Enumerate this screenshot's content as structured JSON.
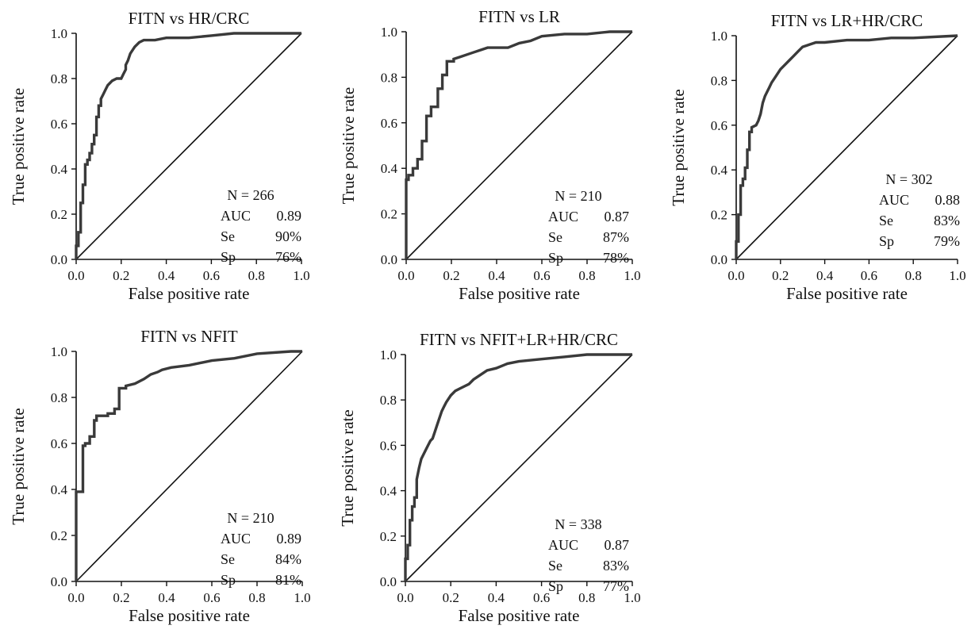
{
  "chart_data": [
    {
      "type": "line",
      "title": "FITN vs HR/CRC",
      "xlabel": "False positive rate",
      "ylabel": "True positive rate",
      "xlim": [
        0,
        1
      ],
      "ylim": [
        0,
        1
      ],
      "x_ticks": [
        "0.0",
        "0.2",
        "0.4",
        "0.6",
        "0.8",
        "1.0"
      ],
      "y_ticks": [
        "0.0",
        "0.2",
        "0.4",
        "0.6",
        "0.8",
        "1.0"
      ],
      "stats": {
        "n": "N = 266",
        "rows": [
          [
            "AUC",
            "0.89"
          ],
          [
            "Se",
            "90%"
          ],
          [
            "Sp",
            "76%"
          ]
        ]
      },
      "roc": {
        "x": [
          0,
          0,
          0.01,
          0.01,
          0.02,
          0.02,
          0.03,
          0.03,
          0.04,
          0.04,
          0.05,
          0.05,
          0.06,
          0.06,
          0.07,
          0.07,
          0.08,
          0.08,
          0.09,
          0.09,
          0.1,
          0.1,
          0.11,
          0.11,
          0.12,
          0.13,
          0.14,
          0.16,
          0.18,
          0.2,
          0.21,
          0.22,
          0.22,
          0.23,
          0.24,
          0.26,
          0.28,
          0.3,
          0.35,
          0.4,
          0.5,
          0.6,
          0.7,
          1.0
        ],
        "y": [
          0,
          0.06,
          0.06,
          0.12,
          0.12,
          0.25,
          0.25,
          0.33,
          0.33,
          0.42,
          0.42,
          0.44,
          0.44,
          0.47,
          0.47,
          0.51,
          0.51,
          0.55,
          0.55,
          0.63,
          0.63,
          0.68,
          0.68,
          0.71,
          0.73,
          0.75,
          0.77,
          0.79,
          0.8,
          0.8,
          0.82,
          0.84,
          0.86,
          0.88,
          0.91,
          0.94,
          0.96,
          0.97,
          0.97,
          0.98,
          0.98,
          0.99,
          1.0,
          1.0
        ]
      },
      "diagonal": {
        "x": [
          0,
          1
        ],
        "y": [
          0,
          1
        ]
      }
    },
    {
      "type": "line",
      "title": "FITN vs LR",
      "xlabel": "False positive rate",
      "ylabel": "True positive rate",
      "xlim": [
        0,
        1
      ],
      "ylim": [
        0,
        1
      ],
      "x_ticks": [
        "0.0",
        "0.2",
        "0.4",
        "0.6",
        "0.8",
        "1.0"
      ],
      "y_ticks": [
        "0.0",
        "0.2",
        "0.4",
        "0.6",
        "0.8",
        "1.0"
      ],
      "stats": {
        "n": "N = 210",
        "rows": [
          [
            "AUC",
            "0.87"
          ],
          [
            "Se",
            "87%"
          ],
          [
            "Sp",
            "78%"
          ]
        ]
      },
      "roc": {
        "x": [
          0,
          0,
          0.01,
          0.01,
          0.03,
          0.03,
          0.05,
          0.05,
          0.07,
          0.07,
          0.09,
          0.09,
          0.11,
          0.11,
          0.14,
          0.14,
          0.16,
          0.16,
          0.18,
          0.18,
          0.21,
          0.21,
          0.24,
          0.27,
          0.3,
          0.33,
          0.36,
          0.4,
          0.45,
          0.5,
          0.55,
          0.6,
          0.7,
          0.8,
          0.9,
          1.0
        ],
        "y": [
          0,
          0.35,
          0.35,
          0.37,
          0.37,
          0.4,
          0.4,
          0.44,
          0.44,
          0.52,
          0.52,
          0.63,
          0.63,
          0.67,
          0.67,
          0.75,
          0.75,
          0.81,
          0.81,
          0.87,
          0.87,
          0.88,
          0.89,
          0.9,
          0.91,
          0.92,
          0.93,
          0.93,
          0.93,
          0.95,
          0.96,
          0.98,
          0.99,
          0.99,
          1.0,
          1.0
        ]
      },
      "diagonal": {
        "x": [
          0,
          1
        ],
        "y": [
          0,
          1
        ]
      }
    },
    {
      "type": "line",
      "title": "FITN vs LR+HR/CRC",
      "xlabel": "False positive rate",
      "ylabel": "True positive rate",
      "xlim": [
        0,
        1
      ],
      "ylim": [
        0,
        1
      ],
      "x_ticks": [
        "0.0",
        "0.2",
        "0.4",
        "0.6",
        "0.8",
        "1.0"
      ],
      "y_ticks": [
        "0.0",
        "0.2",
        "0.4",
        "0.6",
        "0.8",
        "1.0"
      ],
      "stats": {
        "n": "N = 302",
        "rows": [
          [
            "AUC",
            "0.88"
          ],
          [
            "Se",
            "83%"
          ],
          [
            "Sp",
            "79%"
          ]
        ]
      },
      "roc": {
        "x": [
          0,
          0,
          0.01,
          0.01,
          0.02,
          0.02,
          0.03,
          0.03,
          0.04,
          0.04,
          0.05,
          0.05,
          0.06,
          0.06,
          0.07,
          0.07,
          0.09,
          0.1,
          0.11,
          0.12,
          0.13,
          0.14,
          0.15,
          0.16,
          0.18,
          0.2,
          0.22,
          0.24,
          0.26,
          0.28,
          0.3,
          0.33,
          0.36,
          0.4,
          0.5,
          0.6,
          0.7,
          0.8,
          1.0
        ],
        "y": [
          0,
          0.08,
          0.08,
          0.2,
          0.2,
          0.33,
          0.33,
          0.36,
          0.36,
          0.41,
          0.41,
          0.49,
          0.49,
          0.57,
          0.57,
          0.59,
          0.6,
          0.62,
          0.65,
          0.7,
          0.73,
          0.75,
          0.77,
          0.79,
          0.82,
          0.85,
          0.87,
          0.89,
          0.91,
          0.93,
          0.95,
          0.96,
          0.97,
          0.97,
          0.98,
          0.98,
          0.99,
          0.99,
          1.0
        ]
      },
      "diagonal": {
        "x": [
          0,
          1
        ],
        "y": [
          0,
          1
        ]
      }
    },
    {
      "type": "line",
      "title": "FITN vs NFIT",
      "xlabel": "False positive rate",
      "ylabel": "True positive rate",
      "xlim": [
        0,
        1
      ],
      "ylim": [
        0,
        1
      ],
      "x_ticks": [
        "0.0",
        "0.2",
        "0.4",
        "0.6",
        "0.8",
        "1.0"
      ],
      "y_ticks": [
        "0.0",
        "0.2",
        "0.4",
        "0.6",
        "0.8",
        "1.0"
      ],
      "stats": {
        "n": "N = 210",
        "rows": [
          [
            "AUC",
            "0.89"
          ],
          [
            "Se",
            "84%"
          ],
          [
            "Sp",
            "81%"
          ]
        ]
      },
      "roc": {
        "x": [
          0,
          0,
          0.03,
          0.03,
          0.04,
          0.04,
          0.06,
          0.06,
          0.08,
          0.08,
          0.09,
          0.09,
          0.14,
          0.14,
          0.17,
          0.17,
          0.19,
          0.19,
          0.22,
          0.22,
          0.26,
          0.3,
          0.33,
          0.36,
          0.38,
          0.42,
          0.5,
          0.6,
          0.7,
          0.8,
          0.95,
          1.0
        ],
        "y": [
          0,
          0.39,
          0.39,
          0.59,
          0.59,
          0.6,
          0.6,
          0.63,
          0.63,
          0.7,
          0.7,
          0.72,
          0.72,
          0.73,
          0.73,
          0.75,
          0.75,
          0.84,
          0.84,
          0.85,
          0.86,
          0.88,
          0.9,
          0.91,
          0.92,
          0.93,
          0.94,
          0.96,
          0.97,
          0.99,
          1.0,
          1.0
        ]
      },
      "diagonal": {
        "x": [
          0,
          1
        ],
        "y": [
          0,
          1
        ]
      }
    },
    {
      "type": "line",
      "title": "FITN vs NFIT+LR+HR/CRC",
      "xlabel": "False positive rate",
      "ylabel": "True positive rate",
      "xlim": [
        0,
        1
      ],
      "ylim": [
        0,
        1
      ],
      "x_ticks": [
        "0.0",
        "0.2",
        "0.4",
        "0.6",
        "0.8",
        "1.0"
      ],
      "y_ticks": [
        "0.0",
        "0.2",
        "0.4",
        "0.6",
        "0.8",
        "1.0"
      ],
      "stats": {
        "n": "N = 338",
        "rows": [
          [
            "AUC",
            "0.87"
          ],
          [
            "Se",
            "83%"
          ],
          [
            "Sp",
            "77%"
          ]
        ]
      },
      "roc": {
        "x": [
          0,
          0,
          0.01,
          0.01,
          0.02,
          0.02,
          0.03,
          0.03,
          0.04,
          0.04,
          0.05,
          0.05,
          0.06,
          0.07,
          0.08,
          0.09,
          0.1,
          0.11,
          0.12,
          0.13,
          0.14,
          0.15,
          0.16,
          0.17,
          0.18,
          0.2,
          0.22,
          0.24,
          0.26,
          0.28,
          0.3,
          0.33,
          0.36,
          0.4,
          0.45,
          0.5,
          0.6,
          0.7,
          0.8,
          1.0
        ],
        "y": [
          0,
          0.1,
          0.1,
          0.16,
          0.16,
          0.27,
          0.27,
          0.33,
          0.33,
          0.37,
          0.37,
          0.45,
          0.5,
          0.54,
          0.56,
          0.58,
          0.6,
          0.62,
          0.63,
          0.66,
          0.69,
          0.72,
          0.75,
          0.77,
          0.79,
          0.82,
          0.84,
          0.85,
          0.86,
          0.87,
          0.89,
          0.91,
          0.93,
          0.94,
          0.96,
          0.97,
          0.98,
          0.99,
          1.0,
          1.0
        ]
      },
      "diagonal": {
        "x": [
          0,
          1
        ],
        "y": [
          0,
          1
        ]
      }
    }
  ]
}
